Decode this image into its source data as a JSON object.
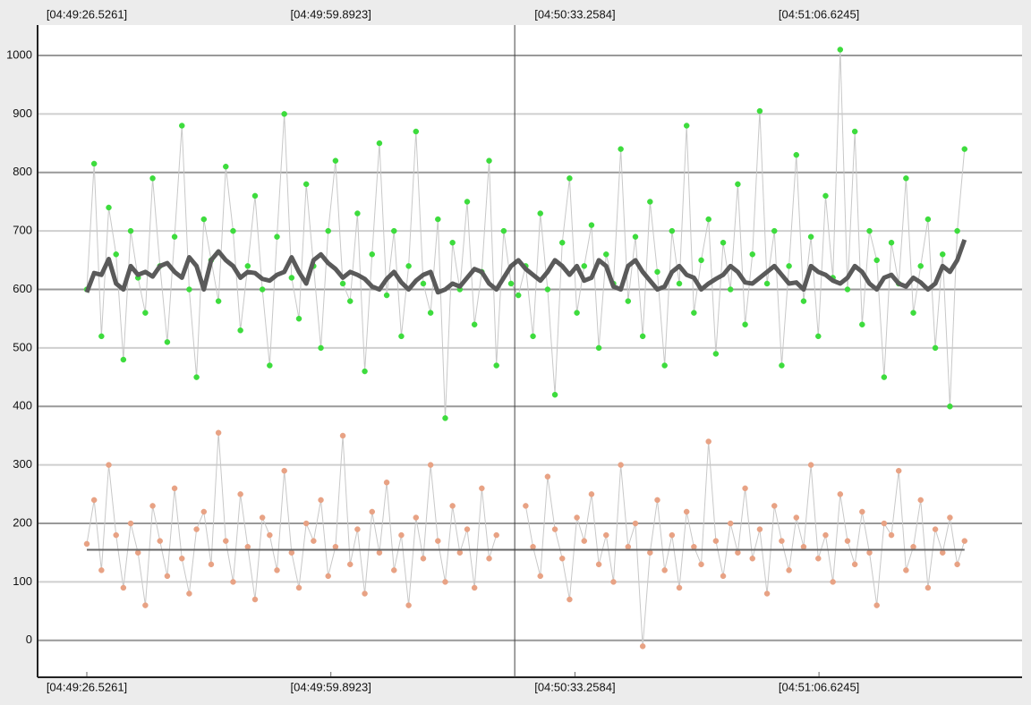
{
  "chart_data": {
    "type": "scatter-line",
    "x": [
      0,
      1,
      2,
      3,
      4,
      5,
      6,
      7,
      8,
      9,
      10,
      11,
      12,
      13,
      14,
      15,
      16,
      17,
      18,
      19,
      20,
      21,
      22,
      23,
      24,
      25,
      26,
      27,
      28,
      29,
      30,
      31,
      32,
      33,
      34,
      35,
      36,
      37,
      38,
      39,
      40,
      41,
      42,
      43,
      44,
      45,
      46,
      47,
      48,
      49,
      50,
      51,
      52,
      53,
      54,
      55,
      56,
      57,
      58,
      59,
      60,
      61,
      62,
      63,
      64,
      65,
      66,
      67,
      68,
      69,
      70,
      71,
      72,
      73,
      74,
      75,
      76,
      77,
      78,
      79,
      80,
      81,
      82,
      83,
      84,
      85,
      86,
      87,
      88,
      89,
      90,
      91,
      92,
      93,
      94,
      95,
      96,
      97,
      98,
      99,
      100,
      101,
      102,
      103,
      104,
      105,
      106,
      107,
      108,
      109,
      110,
      111,
      112,
      113,
      114,
      115,
      116,
      117,
      118,
      119,
      120
    ],
    "series": [
      {
        "kind": "points",
        "color": "#3ddc3d",
        "values": [
          600,
          815,
          520,
          740,
          660,
          480,
          700,
          620,
          560,
          790,
          640,
          510,
          690,
          880,
          600,
          450,
          720,
          650,
          580,
          810,
          700,
          530,
          640,
          760,
          600,
          470,
          690,
          900,
          620,
          550,
          780,
          640,
          500,
          700,
          820,
          610,
          580,
          730,
          460,
          660,
          850,
          590,
          700,
          520,
          640,
          870,
          610,
          560,
          720,
          380,
          680,
          600,
          750,
          540,
          630,
          820,
          470,
          700,
          610,
          590,
          640,
          520,
          730,
          600,
          420,
          680,
          790,
          560,
          640,
          710,
          500,
          660,
          610,
          840,
          580,
          690,
          520,
          750,
          630,
          470,
          700,
          610,
          880,
          560,
          650,
          720,
          490,
          680,
          600,
          780,
          540,
          660,
          905,
          610,
          700,
          470,
          640,
          830,
          580,
          690,
          520,
          760,
          620,
          1010,
          600,
          870,
          540,
          700,
          650,
          450,
          680,
          610,
          790,
          560,
          640,
          720,
          500,
          660,
          400,
          700,
          840
        ]
      },
      {
        "kind": "smooth",
        "color": "#5a5a5a",
        "values": [
          595,
          628,
          625,
          652,
          610,
          600,
          640,
          625,
          630,
          622,
          640,
          645,
          630,
          620,
          655,
          640,
          600,
          650,
          665,
          650,
          640,
          620,
          630,
          628,
          618,
          615,
          625,
          630,
          655,
          630,
          610,
          650,
          660,
          645,
          635,
          620,
          630,
          625,
          618,
          605,
          600,
          618,
          630,
          612,
          600,
          615,
          625,
          630,
          595,
          600,
          610,
          605,
          620,
          635,
          630,
          610,
          600,
          620,
          640,
          650,
          635,
          625,
          615,
          630,
          650,
          640,
          625,
          640,
          615,
          620,
          650,
          640,
          605,
          600,
          640,
          650,
          630,
          615,
          600,
          605,
          630,
          640,
          625,
          620,
          600,
          610,
          618,
          625,
          640,
          630,
          612,
          610,
          620,
          630,
          640,
          625,
          610,
          612,
          600,
          640,
          630,
          625,
          615,
          610,
          620,
          640,
          630,
          610,
          600,
          620,
          625,
          610,
          605,
          620,
          612,
          600,
          610,
          640,
          630,
          650,
          685
        ]
      },
      {
        "kind": "points",
        "color": "#e8a284",
        "values": [
          165,
          240,
          120,
          300,
          180,
          90,
          200,
          150,
          60,
          230,
          170,
          110,
          260,
          140,
          80,
          190,
          220,
          130,
          355,
          170,
          100,
          250,
          160,
          70,
          210,
          180,
          120,
          290,
          150,
          90,
          200,
          170,
          240,
          110,
          160,
          350,
          130,
          190,
          80,
          220,
          150,
          270,
          120,
          180,
          60,
          210,
          140,
          300,
          170,
          100,
          230,
          150,
          190,
          90,
          260,
          140,
          180,
          null,
          null,
          null,
          230,
          160,
          110,
          280,
          190,
          140,
          70,
          210,
          170,
          250,
          130,
          180,
          100,
          300,
          160,
          200,
          -10,
          150,
          240,
          120,
          180,
          90,
          220,
          160,
          130,
          340,
          170,
          110,
          200,
          150,
          260,
          140,
          190,
          80,
          230,
          170,
          120,
          210,
          160,
          300,
          140,
          180,
          100,
          250,
          170,
          130,
          220,
          150,
          60,
          200,
          180,
          290,
          120,
          160,
          240,
          90,
          190,
          150,
          210,
          130,
          170
        ]
      }
    ],
    "reference_line": 155,
    "cursor_x": 58.5,
    "xlim": [
      -6.73,
      127.86
    ],
    "xticks": [
      {
        "value": 0,
        "label": "[04:49:26.5261]"
      },
      {
        "value": 33.3662,
        "label": "[04:49:59.8923]"
      },
      {
        "value": 66.7323,
        "label": "[04:50:33.2584]"
      },
      {
        "value": 100.0984,
        "label": "[04:51:06.6245]"
      }
    ],
    "ylim": [
      -63,
      1052
    ],
    "yticks": [
      0,
      100,
      200,
      300,
      400,
      500,
      600,
      700,
      800,
      900,
      1000
    ],
    "grid": true
  }
}
